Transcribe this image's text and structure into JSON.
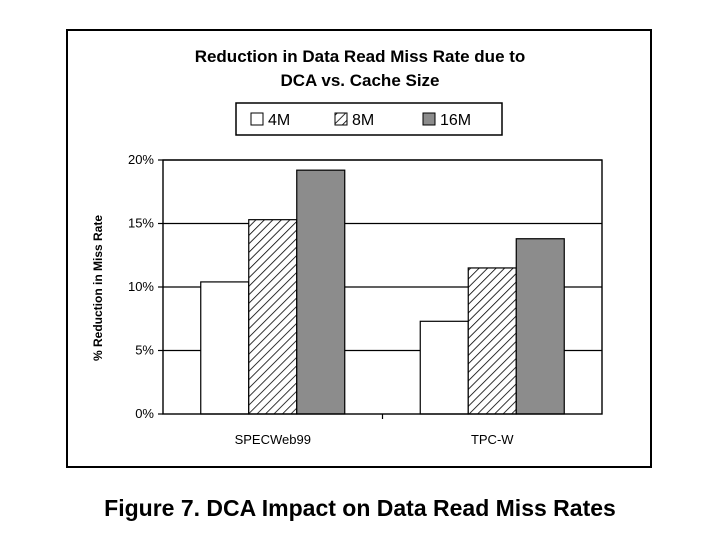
{
  "chart_data": {
    "type": "bar",
    "title_line1": "Reduction in Data Read Miss Rate due to",
    "title_line2": "DCA vs. Cache Size",
    "ylabel": "% Reduction in Miss Rate",
    "xlabel": "",
    "categories": [
      "SPECWeb99",
      "TPC-W"
    ],
    "series": [
      {
        "name": "4M",
        "values": [
          10.4,
          7.3
        ],
        "fill": "white"
      },
      {
        "name": "8M",
        "values": [
          15.3,
          11.5
        ],
        "fill": "hatch"
      },
      {
        "name": "16M",
        "values": [
          19.2,
          13.8
        ],
        "fill": "gray"
      }
    ],
    "ylim": [
      0,
      20
    ],
    "yticks": [
      "0%",
      "5%",
      "10%",
      "15%",
      "20%"
    ],
    "grid": true,
    "legend_position": "top-center"
  },
  "caption": "Figure 7.  DCA Impact on Data Read Miss Rates",
  "colors": {
    "bar_gray": "#8c8c8c",
    "bar_white": "#ffffff",
    "hatch": "#000000",
    "grid": "#000000"
  }
}
